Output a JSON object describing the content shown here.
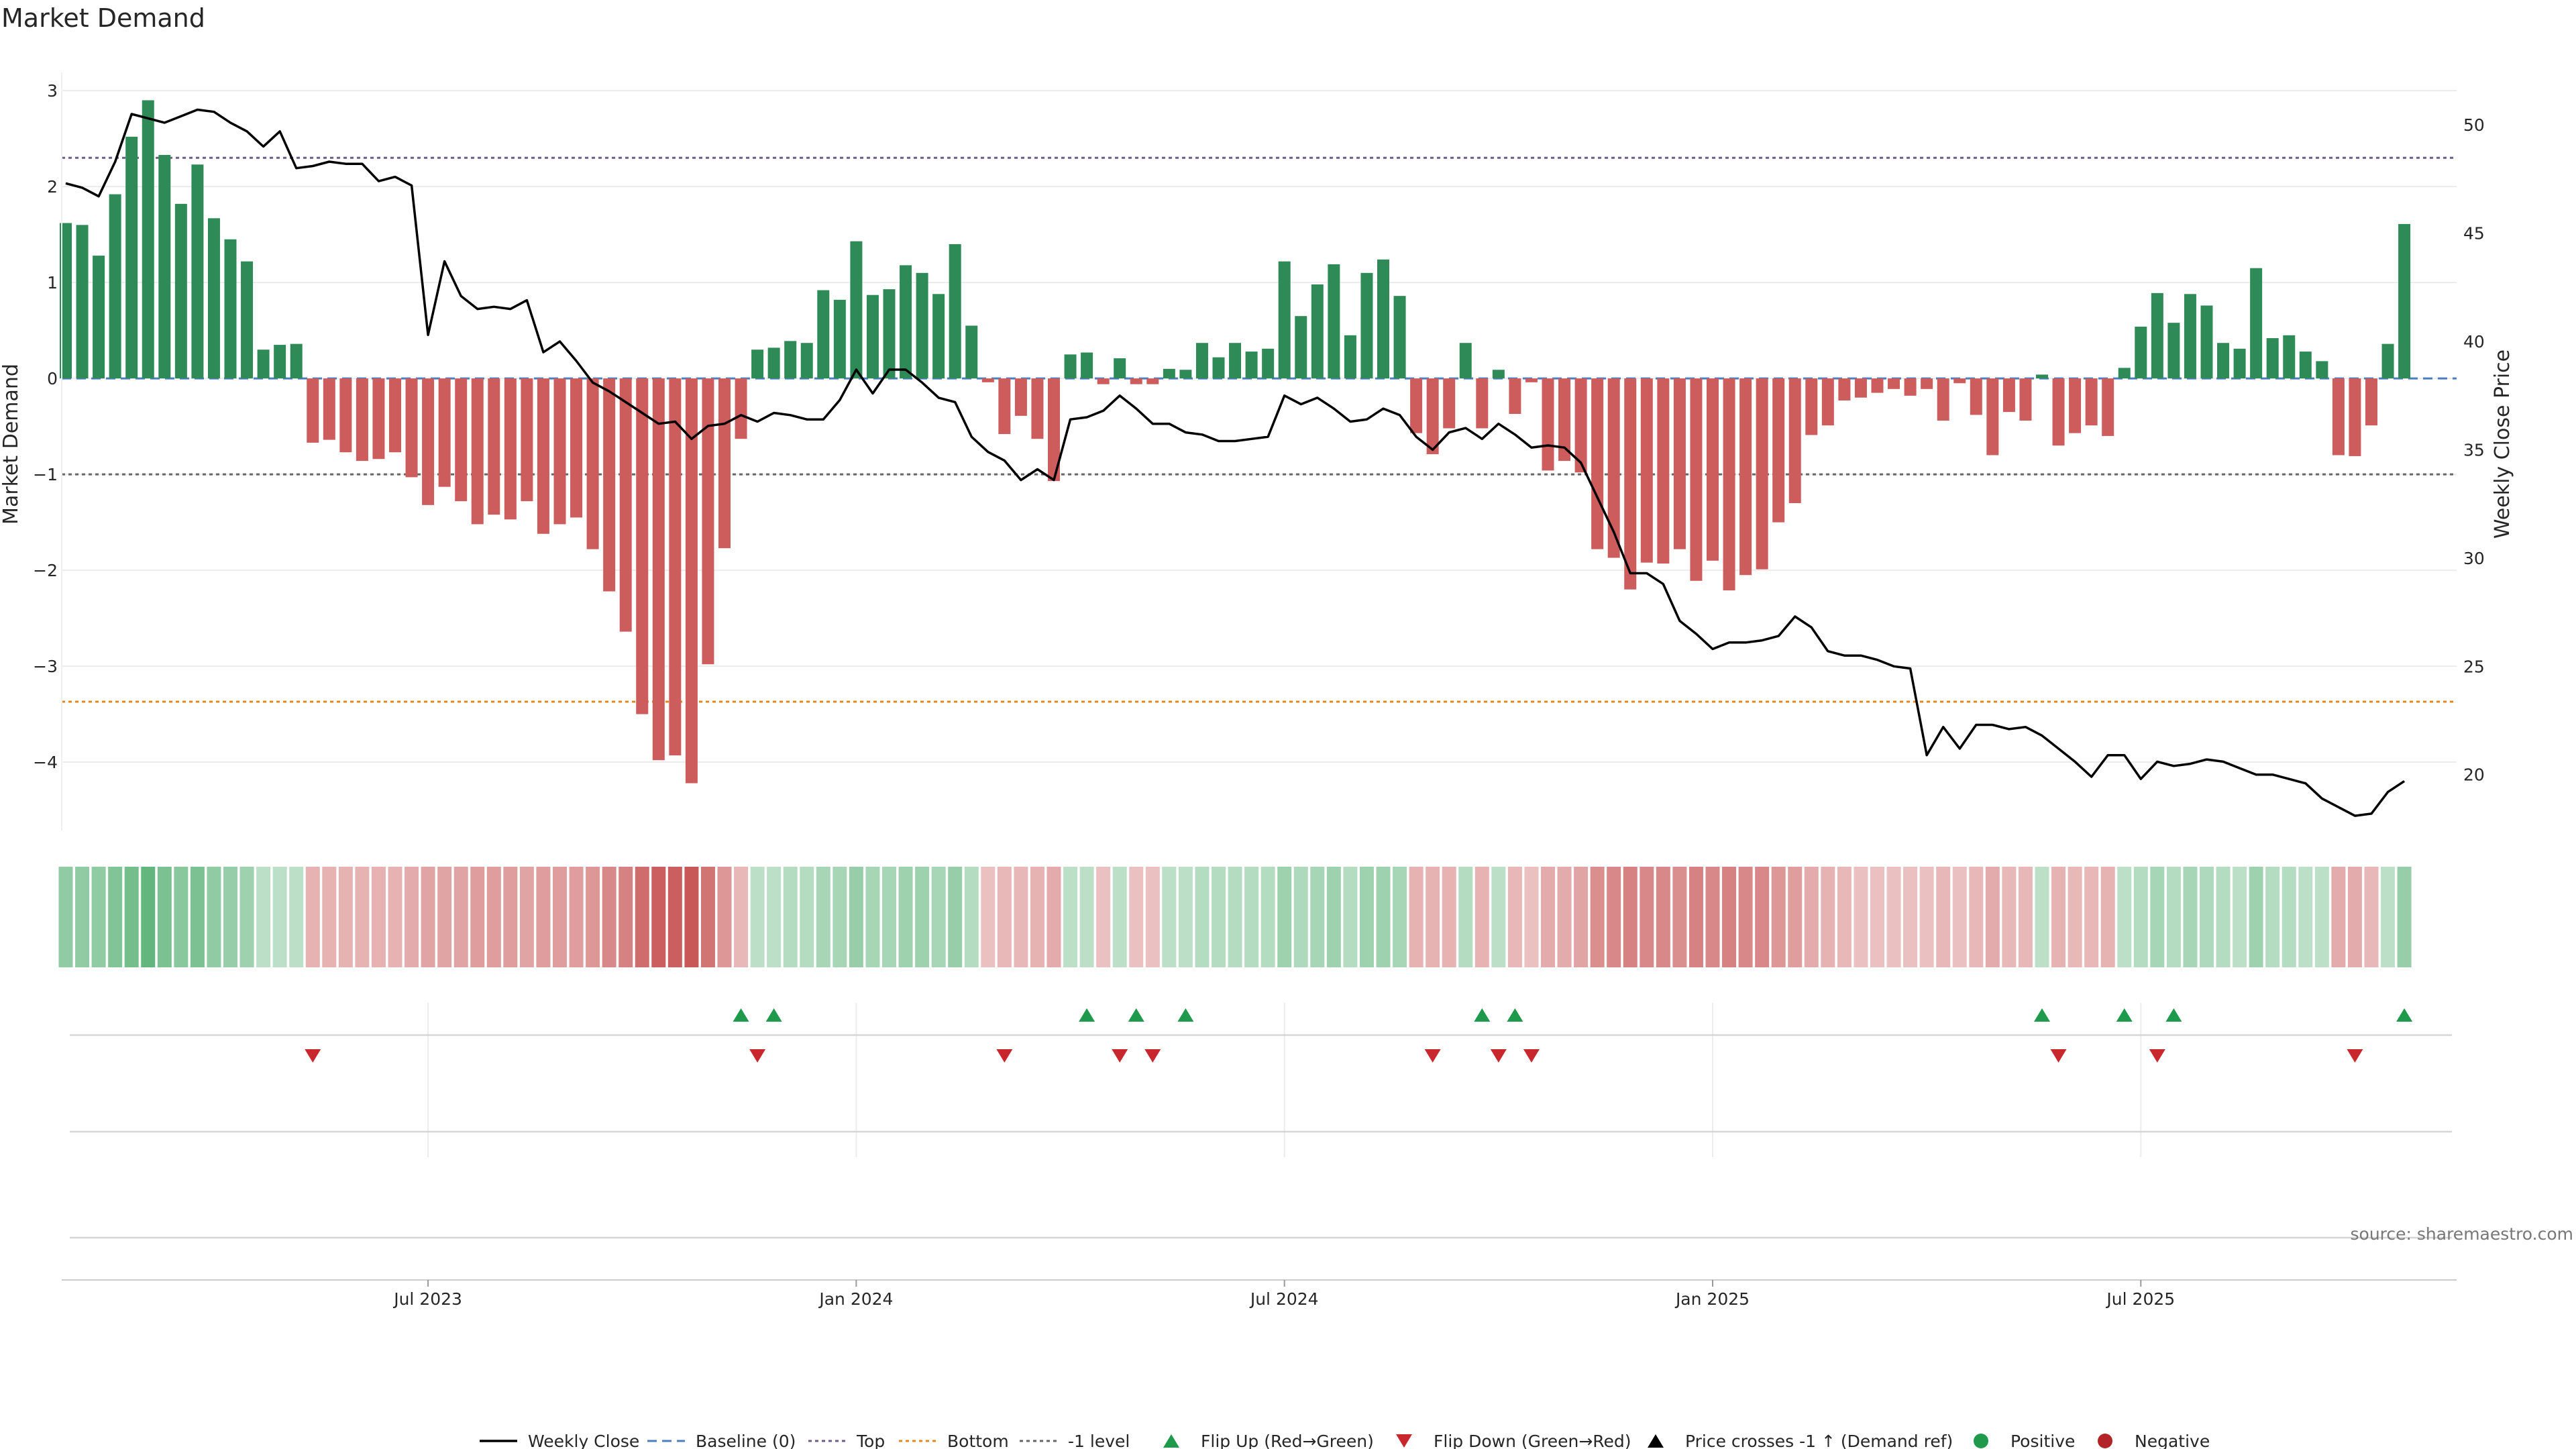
{
  "chart_data": {
    "type": "bar",
    "title": "Market Demand",
    "ylabel": "Market Demand",
    "y2label": "Weekly Close Price",
    "source": "source: sharemaestro.com",
    "ylim": [
      -4.65,
      3.05
    ],
    "y_ticks": [
      3,
      2,
      1,
      0,
      -1,
      -2,
      -3,
      -4
    ],
    "y2lim": [
      17.7,
      51.8
    ],
    "y2_ticks": [
      50,
      45,
      40,
      35,
      30,
      25,
      20
    ],
    "x_ticks": [
      {
        "label": "Jul 2023",
        "index": 22
      },
      {
        "label": "Jan 2024",
        "index": 48
      },
      {
        "label": "Jul 2024",
        "index": 74
      },
      {
        "label": "Jan 2025",
        "index": 100
      },
      {
        "label": "Jul 2025",
        "index": 126
      }
    ],
    "reference_lines": {
      "top": 2.3,
      "bottom": -3.37,
      "minus_one": -1.0,
      "baseline": 0
    },
    "demand": [
      1.62,
      1.6,
      1.28,
      1.92,
      2.52,
      2.9,
      2.33,
      1.82,
      2.23,
      1.67,
      1.45,
      1.22,
      0.3,
      0.35,
      0.36,
      -0.67,
      -0.64,
      -0.77,
      -0.86,
      -0.84,
      -0.77,
      -1.03,
      -1.32,
      -1.13,
      -1.28,
      -1.52,
      -1.42,
      -1.47,
      -1.28,
      -1.62,
      -1.52,
      -1.45,
      -1.78,
      -2.22,
      -2.64,
      -3.5,
      -3.98,
      -3.93,
      -4.22,
      -2.98,
      -1.77,
      -0.63,
      0.3,
      0.32,
      0.39,
      0.37,
      0.92,
      0.82,
      1.43,
      0.87,
      0.93,
      1.18,
      1.1,
      0.88,
      1.4,
      0.55,
      -0.04,
      -0.58,
      -0.39,
      -0.63,
      -1.07,
      0.25,
      0.27,
      -0.06,
      0.21,
      -0.06,
      -0.06,
      0.1,
      0.09,
      0.37,
      0.22,
      0.37,
      0.28,
      0.31,
      1.22,
      0.65,
      0.98,
      1.19,
      0.45,
      1.1,
      1.24,
      0.86,
      -0.57,
      -0.79,
      -0.52,
      0.37,
      -0.52,
      0.09,
      -0.37,
      -0.04,
      -0.96,
      -0.86,
      -0.98,
      -1.78,
      -1.87,
      -2.2,
      -1.92,
      -1.93,
      -1.78,
      -2.11,
      -1.9,
      -2.21,
      -2.05,
      -1.99,
      -1.5,
      -1.3,
      -0.59,
      -0.49,
      -0.23,
      -0.2,
      -0.15,
      -0.11,
      -0.18,
      -0.11,
      -0.44,
      -0.05,
      -0.38,
      -0.8,
      -0.35,
      -0.44,
      0.04,
      -0.7,
      -0.57,
      -0.49,
      -0.6,
      0.11,
      0.54,
      0.89,
      0.58,
      0.88,
      0.76,
      0.37,
      0.31,
      1.15,
      0.42,
      0.45,
      0.28,
      0.18,
      -0.8,
      -0.81,
      -0.49,
      0.36,
      1.61
    ],
    "weekly_close": [
      47.3,
      47.1,
      46.7,
      48.3,
      50.5,
      50.3,
      50.1,
      50.4,
      50.7,
      50.6,
      50.1,
      49.7,
      49.0,
      49.7,
      48.0,
      48.1,
      48.3,
      48.2,
      48.2,
      47.4,
      47.6,
      47.2,
      40.3,
      43.7,
      42.1,
      41.5,
      41.6,
      41.5,
      41.9,
      39.5,
      40.0,
      39.1,
      38.1,
      37.7,
      37.2,
      36.7,
      36.2,
      36.3,
      35.5,
      36.1,
      36.2,
      36.6,
      36.3,
      36.7,
      36.6,
      36.4,
      36.4,
      37.3,
      38.7,
      37.6,
      38.7,
      38.7,
      38.1,
      37.4,
      37.2,
      35.6,
      34.9,
      34.5,
      33.6,
      34.1,
      33.6,
      36.4,
      36.5,
      36.8,
      37.5,
      36.9,
      36.2,
      36.2,
      35.8,
      35.7,
      35.4,
      35.4,
      35.5,
      35.6,
      37.5,
      37.1,
      37.4,
      36.9,
      36.3,
      36.4,
      36.9,
      36.6,
      35.6,
      35.0,
      35.8,
      36.0,
      35.5,
      36.2,
      35.7,
      35.1,
      35.2,
      35.1,
      34.4,
      32.8,
      31.2,
      29.3,
      29.3,
      28.8,
      27.1,
      26.5,
      25.8,
      26.1,
      26.1,
      26.2,
      26.4,
      27.3,
      26.8,
      25.7,
      25.5,
      25.5,
      25.3,
      25.0,
      24.9,
      20.9,
      22.2,
      21.2,
      22.3,
      22.3,
      22.1,
      22.2,
      21.8,
      21.2,
      20.6,
      19.9,
      20.9,
      20.9,
      19.8,
      20.6,
      20.4,
      20.5,
      20.7,
      20.6,
      20.3,
      20.0,
      20.0,
      19.8,
      19.6,
      18.9,
      18.5,
      18.1,
      18.2,
      19.2,
      19.7
    ],
    "strip_intensity": [
      0.55,
      0.55,
      0.55,
      0.65,
      0.75,
      0.85,
      0.7,
      0.6,
      0.7,
      0.55,
      0.5,
      0.45,
      0.25,
      0.25,
      0.25,
      0.35,
      0.35,
      0.35,
      0.35,
      0.35,
      0.35,
      0.4,
      0.45,
      0.45,
      0.45,
      0.5,
      0.5,
      0.5,
      0.45,
      0.5,
      0.5,
      0.5,
      0.55,
      0.65,
      0.7,
      0.85,
      0.95,
      0.95,
      1.0,
      0.8,
      0.55,
      0.3,
      0.25,
      0.25,
      0.3,
      0.3,
      0.4,
      0.4,
      0.5,
      0.4,
      0.4,
      0.45,
      0.45,
      0.4,
      0.5,
      0.3,
      0.25,
      0.3,
      0.3,
      0.35,
      0.4,
      0.25,
      0.25,
      0.25,
      0.25,
      0.25,
      0.25,
      0.25,
      0.25,
      0.3,
      0.3,
      0.3,
      0.3,
      0.3,
      0.45,
      0.35,
      0.4,
      0.45,
      0.3,
      0.45,
      0.45,
      0.4,
      0.35,
      0.35,
      0.35,
      0.3,
      0.35,
      0.25,
      0.3,
      0.25,
      0.4,
      0.4,
      0.45,
      0.6,
      0.65,
      0.7,
      0.65,
      0.65,
      0.6,
      0.7,
      0.65,
      0.7,
      0.65,
      0.65,
      0.55,
      0.5,
      0.4,
      0.35,
      0.3,
      0.25,
      0.25,
      0.25,
      0.25,
      0.25,
      0.3,
      0.25,
      0.3,
      0.4,
      0.3,
      0.3,
      0.25,
      0.35,
      0.3,
      0.3,
      0.35,
      0.25,
      0.3,
      0.4,
      0.3,
      0.4,
      0.35,
      0.3,
      0.25,
      0.45,
      0.3,
      0.3,
      0.25,
      0.25,
      0.4,
      0.4,
      0.3,
      0.25,
      0.5
    ],
    "flip_up_indices": [
      41,
      43,
      62,
      65,
      68,
      86,
      88,
      120,
      125,
      128,
      142
    ],
    "flip_down_indices": [
      15,
      42,
      57,
      64,
      66,
      83,
      87,
      89,
      121,
      127,
      139
    ],
    "legend": [
      {
        "label": "Weekly Close",
        "symbol": "line",
        "color": "#000000"
      },
      {
        "label": "Baseline (0)",
        "symbol": "dash",
        "color": "#4c7dbf"
      },
      {
        "label": "Top",
        "symbol": "dot",
        "color": "#6f5b8c"
      },
      {
        "label": "Bottom",
        "symbol": "dot",
        "color": "#e08a1e"
      },
      {
        "label": "-1 level",
        "symbol": "dot",
        "color": "#666666"
      },
      {
        "label": "Flip Up (Red→Green)",
        "symbol": "tri-up",
        "color": "#1f9a4c"
      },
      {
        "label": "Flip Down (Green→Red)",
        "symbol": "tri-down",
        "color": "#c8272d"
      },
      {
        "label": "Price crosses -1 ↑ (Demand ref)",
        "symbol": "tri-up",
        "color": "#000000"
      },
      {
        "label": "Positive",
        "symbol": "circle",
        "color": "#1f9a4c"
      },
      {
        "label": "Negative",
        "symbol": "circle",
        "color": "#b32428"
      }
    ],
    "colors": {
      "positive_bar": "#2e8b57",
      "negative_bar": "#cd5c5c",
      "price_line": "#000000",
      "top_line": "#6f5b8c",
      "bottom_line": "#e08a1e",
      "minus_one_line": "#666666",
      "baseline": "#4c7dbf",
      "strip_positive": "#3aa35c",
      "strip_negative": "#c24545"
    }
  }
}
